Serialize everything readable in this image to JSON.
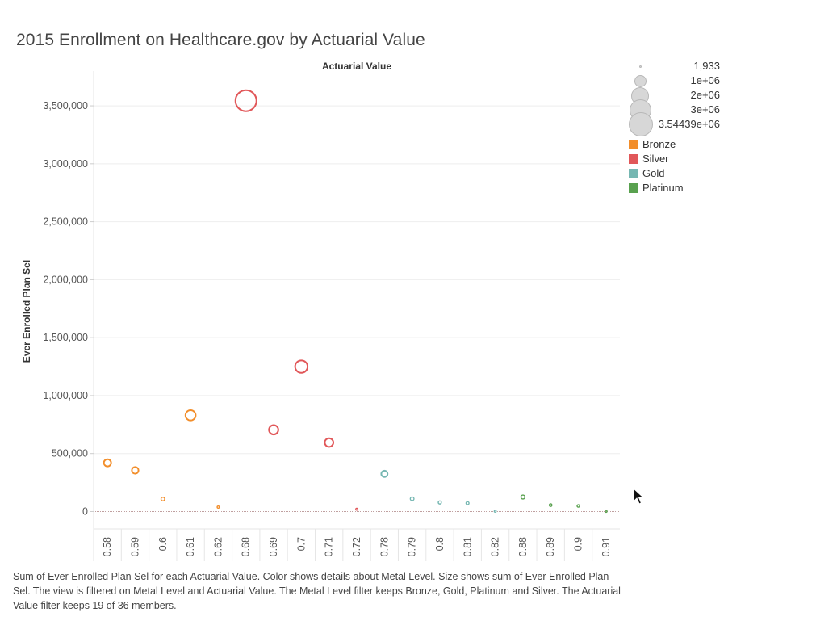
{
  "title": "2015 Enrollment on Healthcare.gov by Actuarial Value",
  "colors": {
    "Bronze": "#f28e2b",
    "Silver": "#e15759",
    "Gold": "#76b7b2",
    "Platinum": "#59a14f",
    "grid": "#eeeeee",
    "zero_line": "#c0a0a0",
    "axis_text": "#555555"
  },
  "legend": {
    "size_labels": [
      "1,933",
      "1e+06",
      "2e+06",
      "3e+06",
      "3.54439e+06"
    ],
    "color_items": [
      "Bronze",
      "Silver",
      "Gold",
      "Platinum"
    ]
  },
  "caption": "Sum of Ever Enrolled Plan Sel for each Actuarial Value.  Color shows details about Metal Level.  Size shows sum of Ever Enrolled Plan Sel. The view is filtered on Metal Level and Actuarial Value. The Metal Level filter keeps Bronze, Gold, Platinum and Silver. The Actuarial Value filter keeps 19 of 36 members.",
  "cursor_icon": "arrow-cursor-icon",
  "chart_data": {
    "type": "scatter",
    "column_header": "Actuarial Value",
    "ylabel": "Ever Enrolled Plan Sel",
    "categories": [
      "0.58",
      "0.59",
      "0.6",
      "0.61",
      "0.62",
      "0.68",
      "0.69",
      "0.7",
      "0.71",
      "0.72",
      "0.78",
      "0.79",
      "0.8",
      "0.81",
      "0.82",
      "0.88",
      "0.89",
      "0.9",
      "0.91"
    ],
    "metal_levels": [
      "Bronze",
      "Bronze",
      "Bronze",
      "Bronze",
      "Bronze",
      "Silver",
      "Silver",
      "Silver",
      "Silver",
      "Silver",
      "Gold",
      "Gold",
      "Gold",
      "Gold",
      "Gold",
      "Platinum",
      "Platinum",
      "Platinum",
      "Platinum"
    ],
    "values": [
      420000,
      355000,
      108000,
      830000,
      38000,
      3544390,
      705000,
      1250000,
      595000,
      20000,
      325000,
      110000,
      78000,
      72000,
      2500,
      125000,
      55000,
      48000,
      1933
    ],
    "ylim": [
      -150000,
      3800000
    ],
    "yticks": [
      0,
      500000,
      1000000,
      1500000,
      2000000,
      2500000,
      3000000,
      3500000
    ],
    "ytick_labels": [
      "0",
      "500,000",
      "1,000,000",
      "1,500,000",
      "2,000,000",
      "2,500,000",
      "3,000,000",
      "3,500,000"
    ],
    "size_range": [
      1933,
      3544390
    ],
    "grid": true,
    "legend_position": "right"
  }
}
